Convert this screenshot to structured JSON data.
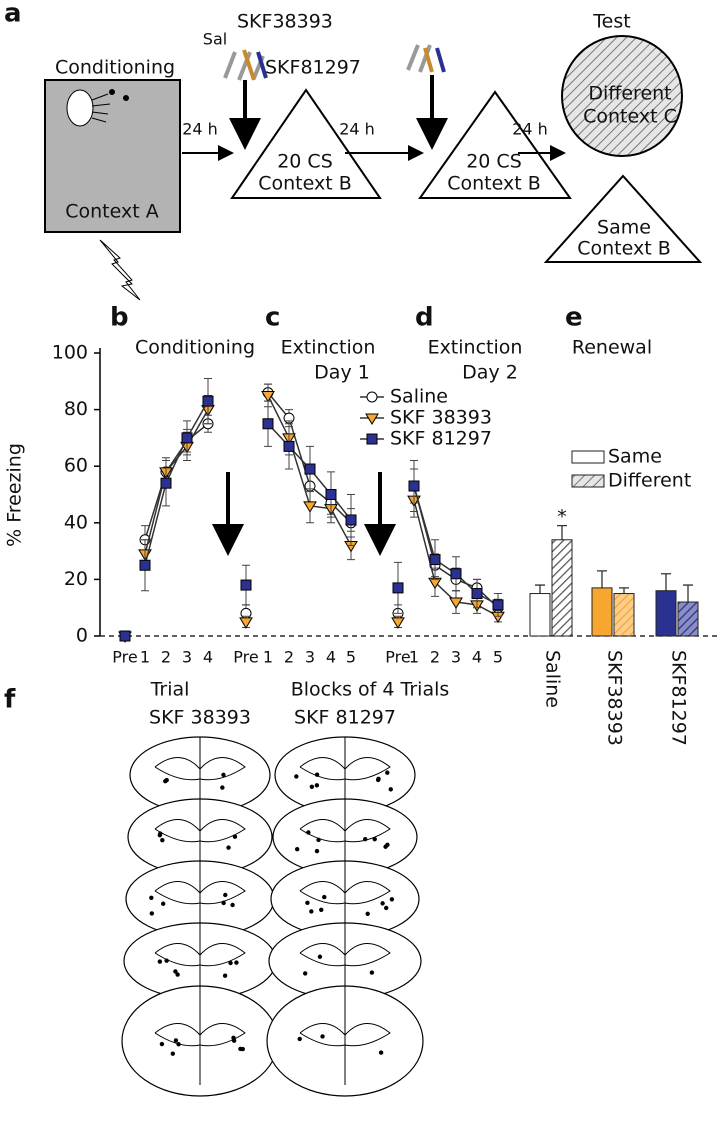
{
  "panel_a": {
    "letter": "a",
    "conditioning": "Conditioning",
    "context_a": "Context A",
    "sal": "Sal",
    "drug1": "SKF38393",
    "drug2": "SKF81297",
    "delays": [
      "24 h",
      "24 h",
      "24 h"
    ],
    "extinction": [
      {
        "cs": "20 CS",
        "context": "Context B"
      },
      {
        "cs": "20 CS",
        "context": "Context B"
      }
    ],
    "test": "Test",
    "different": [
      "Different",
      "Context C"
    ],
    "same": [
      "Same",
      "Context B"
    ]
  },
  "chart_data": [
    {
      "type": "line",
      "y_label": "% Freezing",
      "ylim": [
        0,
        100
      ],
      "yticks": [
        0,
        20,
        40,
        60,
        80,
        100
      ],
      "panels": [
        {
          "letter": "b",
          "title": [
            "Conditioning"
          ]
        },
        {
          "letter": "c",
          "title": [
            "Extinction",
            "Day 1"
          ]
        },
        {
          "letter": "d",
          "title": [
            "Extinction",
            "Day 2"
          ]
        }
      ],
      "x_labels": [
        "Trial",
        "Blocks of 4 Trials"
      ],
      "categories": [
        "Pre",
        null,
        "1",
        "2",
        "3",
        "4",
        null,
        "Pre",
        null,
        "1",
        "2",
        "3",
        "4",
        "5",
        null,
        "Pre",
        null,
        "1",
        "2",
        "3",
        "4",
        "5"
      ],
      "series": [
        {
          "name": "Saline",
          "color": "#ffffff",
          "marker": "circle",
          "values": [
            0,
            null,
            34,
            58,
            69,
            75,
            null,
            8,
            null,
            86,
            77,
            53,
            47,
            40,
            null,
            8,
            null,
            53,
            25,
            20,
            17,
            10
          ],
          "errors": [
            1,
            null,
            5,
            4,
            4,
            3,
            null,
            3,
            null,
            3,
            3,
            6,
            4,
            5,
            null,
            3,
            null,
            6,
            4,
            4,
            3,
            3
          ]
        },
        {
          "name": "SKF 38393",
          "color": "#f7a630",
          "marker": "triangle-down",
          "values": [
            0,
            null,
            29,
            58,
            67,
            80,
            null,
            5,
            null,
            85,
            70,
            46,
            45,
            32,
            null,
            5,
            null,
            48,
            19,
            12,
            11,
            7
          ],
          "errors": [
            1,
            null,
            5,
            5,
            5,
            5,
            null,
            2,
            null,
            4,
            6,
            6,
            5,
            5,
            null,
            2,
            null,
            6,
            5,
            4,
            3,
            2
          ]
        },
        {
          "name": "SKF 81297",
          "color": "#2b3190",
          "marker": "square",
          "values": [
            0,
            null,
            25,
            54,
            70,
            83,
            null,
            18,
            null,
            75,
            67,
            59,
            50,
            41,
            null,
            17,
            null,
            53,
            27,
            22,
            15,
            11
          ],
          "errors": [
            1,
            null,
            9,
            8,
            6,
            8,
            null,
            7,
            null,
            8,
            8,
            8,
            8,
            9,
            null,
            9,
            null,
            9,
            7,
            6,
            5,
            4
          ]
        }
      ]
    },
    {
      "type": "bar",
      "letter": "e",
      "title": "Renewal",
      "ylim": [
        0,
        100
      ],
      "categories": [
        "Saline",
        "SKF38393",
        "SKF81297"
      ],
      "colors": [
        "#ffffff",
        "#f7a630",
        "#2b3190"
      ],
      "series": [
        {
          "name": "Same",
          "values": [
            15,
            17,
            16
          ],
          "errors": [
            3,
            6,
            6
          ]
        },
        {
          "name": "Different",
          "hatch": true,
          "values": [
            34,
            15,
            12
          ],
          "errors": [
            5,
            2,
            6
          ]
        }
      ],
      "annotations": [
        {
          "text": "*",
          "category": 0,
          "series": 1
        }
      ]
    }
  ],
  "panel_f": {
    "letter": "f",
    "groups": [
      "SKF 38393",
      "SKF 81297"
    ]
  }
}
